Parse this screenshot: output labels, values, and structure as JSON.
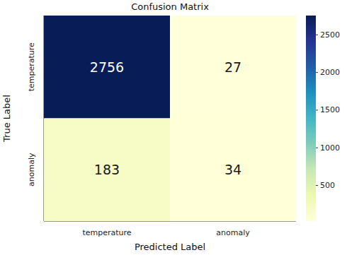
{
  "chart_data": {
    "type": "heatmap",
    "title": "Confusion Matrix",
    "x_label": "Predicted Label",
    "y_label": "True Label",
    "x_categories": [
      "temperature",
      "anomaly"
    ],
    "y_categories": [
      "temperature",
      "anomaly"
    ],
    "cells": [
      [
        2756,
        27
      ],
      [
        183,
        34
      ]
    ],
    "data_labels": true,
    "colorbar_range": [
      27,
      2756
    ],
    "colorbar_ticks": [
      500,
      1000,
      1500,
      2000,
      2500
    ]
  }
}
